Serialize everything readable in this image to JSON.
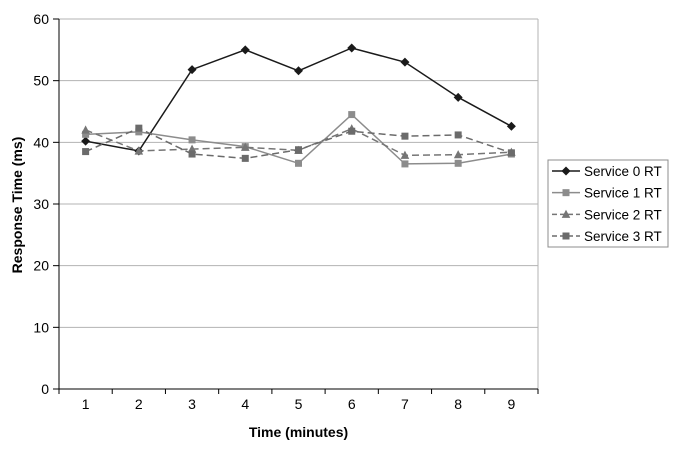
{
  "chart_data": {
    "type": "line",
    "title": "",
    "xlabel": "Time (minutes)",
    "ylabel": "Response Time (ms)",
    "x": [
      1,
      2,
      3,
      4,
      5,
      6,
      7,
      8,
      9
    ],
    "xticks": [
      "1",
      "2",
      "3",
      "4",
      "5",
      "6",
      "7",
      "8",
      "9"
    ],
    "yticks": [
      0,
      10,
      20,
      30,
      40,
      50,
      60
    ],
    "ylim": [
      0,
      60
    ],
    "grid": "horizontal",
    "legend_position": "right",
    "colors": {
      "axis": "#000000",
      "gridline": "#b3b3b3",
      "plot_border": "#b3b3b3",
      "legend_border": "#8c8c8c",
      "background": "#ffffff"
    },
    "series": [
      {
        "name": "Service 0 RT",
        "marker": "diamond",
        "dash": "solid",
        "color": "#1a1a1a",
        "values": [
          40.2,
          38.6,
          51.8,
          55.0,
          51.6,
          55.3,
          53.0,
          47.3,
          42.6
        ]
      },
      {
        "name": "Service 1 RT",
        "marker": "square",
        "dash": "solid",
        "color": "#8c8c8c",
        "values": [
          41.3,
          41.7,
          40.4,
          39.3,
          36.6,
          44.5,
          36.5,
          36.6,
          38.1
        ]
      },
      {
        "name": "Service 2 RT",
        "marker": "triangle",
        "dash": "dashed",
        "color": "#757575",
        "values": [
          42.0,
          38.6,
          38.9,
          39.2,
          38.7,
          42.2,
          37.9,
          38.0,
          38.4
        ]
      },
      {
        "name": "Service 3 RT",
        "marker": "square",
        "dash": "dashed",
        "color": "#6b6b6b",
        "values": [
          38.5,
          42.3,
          38.1,
          37.4,
          38.8,
          41.8,
          41.0,
          41.2,
          38.3
        ]
      }
    ]
  }
}
